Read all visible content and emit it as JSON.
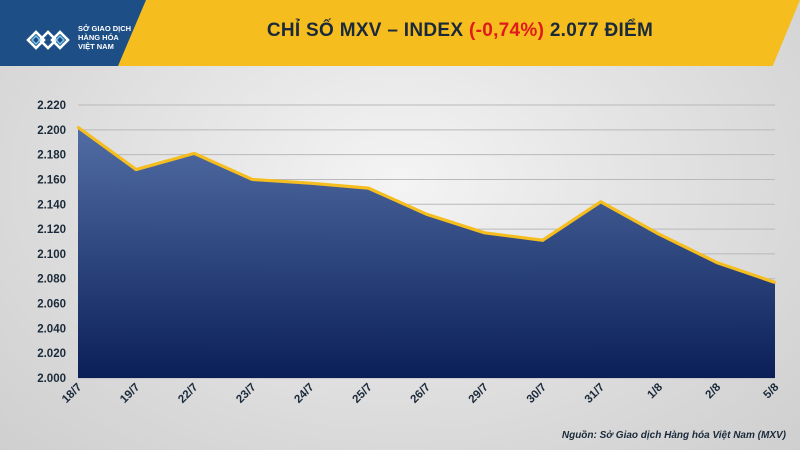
{
  "header": {
    "title_prefix": "CHỈ SỐ MXV – INDEX",
    "title_change": "(-0,74%)",
    "title_suffix": "2.077 ĐIỂM",
    "org_line1": "SỞ GIAO DỊCH",
    "org_line2": "HÀNG HÓA",
    "org_line3": "VIỆT NAM"
  },
  "colors": {
    "banner": "#f6bd1f",
    "brand_blue": "#1d4f86",
    "area_top": "#4d6aa3",
    "area_bottom": "#0b1f57",
    "line": "#f6bd1f",
    "negative": "#e0191c"
  },
  "chart_data": {
    "type": "area",
    "categories": [
      "18/7",
      "19/7",
      "22/7",
      "23/7",
      "24/7",
      "25/7",
      "26/7",
      "29/7",
      "30/7",
      "31/7",
      "1/8",
      "2/8",
      "5/8"
    ],
    "values": [
      2202,
      2168,
      2181,
      2160,
      2157,
      2153,
      2132,
      2117,
      2111,
      2142,
      2116,
      2093,
      2077
    ],
    "y_ticks": [
      "2.000",
      "2.020",
      "2.040",
      "2.060",
      "2.080",
      "2.100",
      "2.120",
      "2.140",
      "2.160",
      "2.180",
      "2.200",
      "2.220"
    ],
    "ylim": [
      2000,
      2220
    ],
    "grid": true
  },
  "footer": {
    "source": "Nguồn: Sở Giao dịch Hàng hóa Việt Nam (MXV)"
  }
}
